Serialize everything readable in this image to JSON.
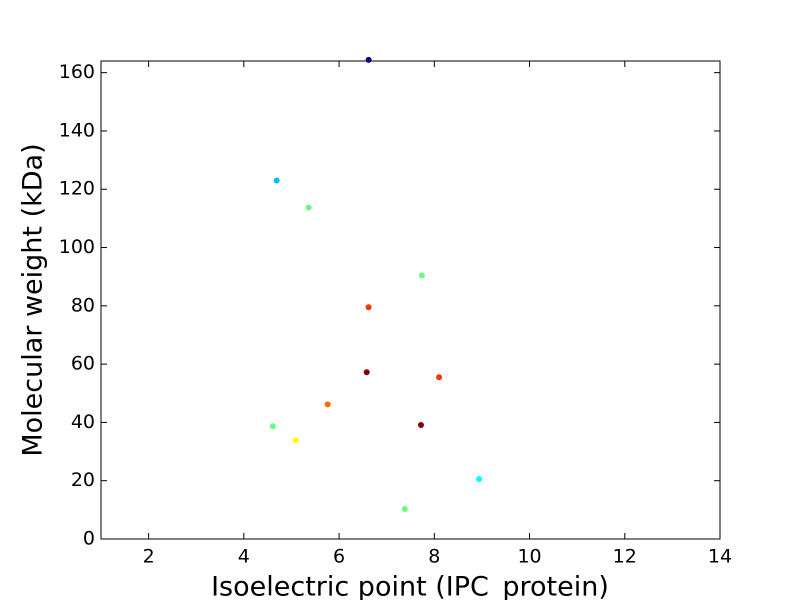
{
  "chart_data": {
    "type": "scatter",
    "x_label": "Isoelectric point (IPC_protein)",
    "y_label": "Molecular weight (kDa)",
    "x": [
      6.62,
      4.69,
      5.36,
      7.74,
      6.62,
      6.58,
      8.1,
      5.76,
      4.61,
      7.72,
      5.09,
      8.94,
      7.38
    ],
    "values": [
      164.4,
      123.0,
      113.7,
      90.4,
      79.5,
      57.2,
      55.5,
      46.2,
      38.7,
      39.1,
      33.9,
      20.6,
      10.3
    ],
    "colors": [
      "#00008b",
      "#00bfff",
      "#66ff80",
      "#66ff80",
      "#ff3300",
      "#800000",
      "#ff3300",
      "#ff6a00",
      "#66ff80",
      "#8b0000",
      "#ffff00",
      "#00ffff",
      "#66ff80"
    ],
    "xlim": [
      1,
      14
    ],
    "xticks": [
      2,
      4,
      6,
      8,
      10,
      12,
      14
    ],
    "ylim": [
      0,
      164
    ],
    "yticks": [
      0,
      20,
      40,
      60,
      80,
      100,
      120,
      140,
      160
    ]
  }
}
